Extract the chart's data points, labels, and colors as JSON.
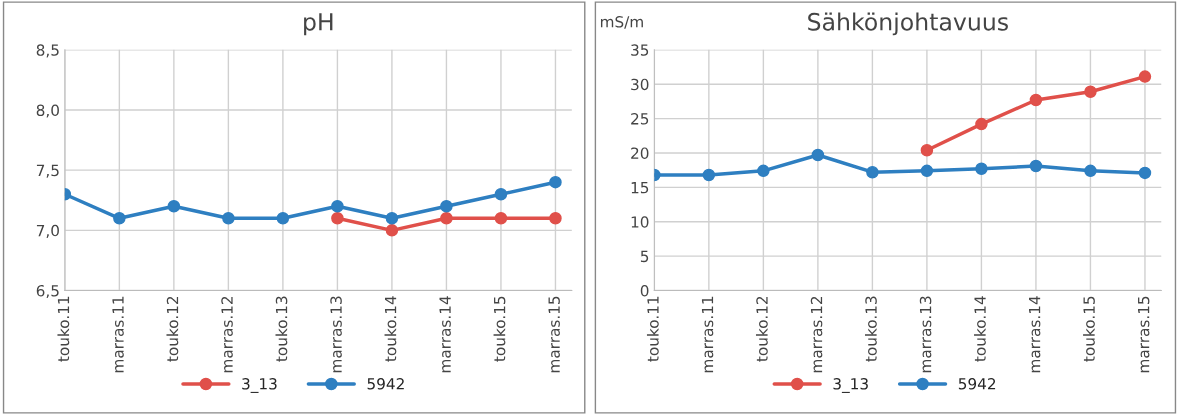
{
  "chart_data": [
    {
      "type": "line",
      "title": "pH",
      "categories": [
        "touko.11",
        "marras.11",
        "touko.12",
        "marras.12",
        "touko.13",
        "marras.13",
        "touko.14",
        "marras.14",
        "touko.15",
        "marras.15"
      ],
      "series": [
        {
          "name": "3_13",
          "color": "#e0504a",
          "values": [
            null,
            null,
            null,
            null,
            null,
            7.1,
            7.0,
            7.1,
            7.1,
            7.1
          ]
        },
        {
          "name": "5942",
          "color": "#2e7fc1",
          "values": [
            7.3,
            7.1,
            7.2,
            7.1,
            7.1,
            7.2,
            7.1,
            7.2,
            7.3,
            7.4
          ]
        }
      ],
      "ylim": [
        6.5,
        8.5
      ],
      "yticks": [
        {
          "value": 6.5,
          "label": "6,5"
        },
        {
          "value": 7.0,
          "label": "7,0"
        },
        {
          "value": 7.5,
          "label": "7,5"
        },
        {
          "value": 8.0,
          "label": "8,0"
        },
        {
          "value": 8.5,
          "label": "8,5"
        }
      ],
      "grid": true,
      "legend": "bottom",
      "marker": "circle",
      "line_style": "solid"
    },
    {
      "type": "line",
      "title": "Sähkönjohtavuus",
      "ylabel": "mS/m",
      "categories": [
        "touko.11",
        "marras.11",
        "touko.12",
        "marras.12",
        "touko.13",
        "marras.13",
        "touko.14",
        "marras.14",
        "touko.15",
        "marras.15"
      ],
      "series": [
        {
          "name": "3_13",
          "color": "#e0504a",
          "values": [
            null,
            null,
            null,
            null,
            null,
            20.4,
            24.2,
            27.7,
            28.9,
            31.1
          ]
        },
        {
          "name": "5942",
          "color": "#2e7fc1",
          "values": [
            16.8,
            16.8,
            17.4,
            19.7,
            17.2,
            17.4,
            17.7,
            18.1,
            17.4,
            17.1
          ]
        }
      ],
      "ylim": [
        0,
        35
      ],
      "yticks": [
        0,
        5,
        10,
        15,
        20,
        25,
        30,
        35
      ],
      "grid": true,
      "legend": "bottom",
      "marker": "circle",
      "line_style": "solid"
    }
  ]
}
